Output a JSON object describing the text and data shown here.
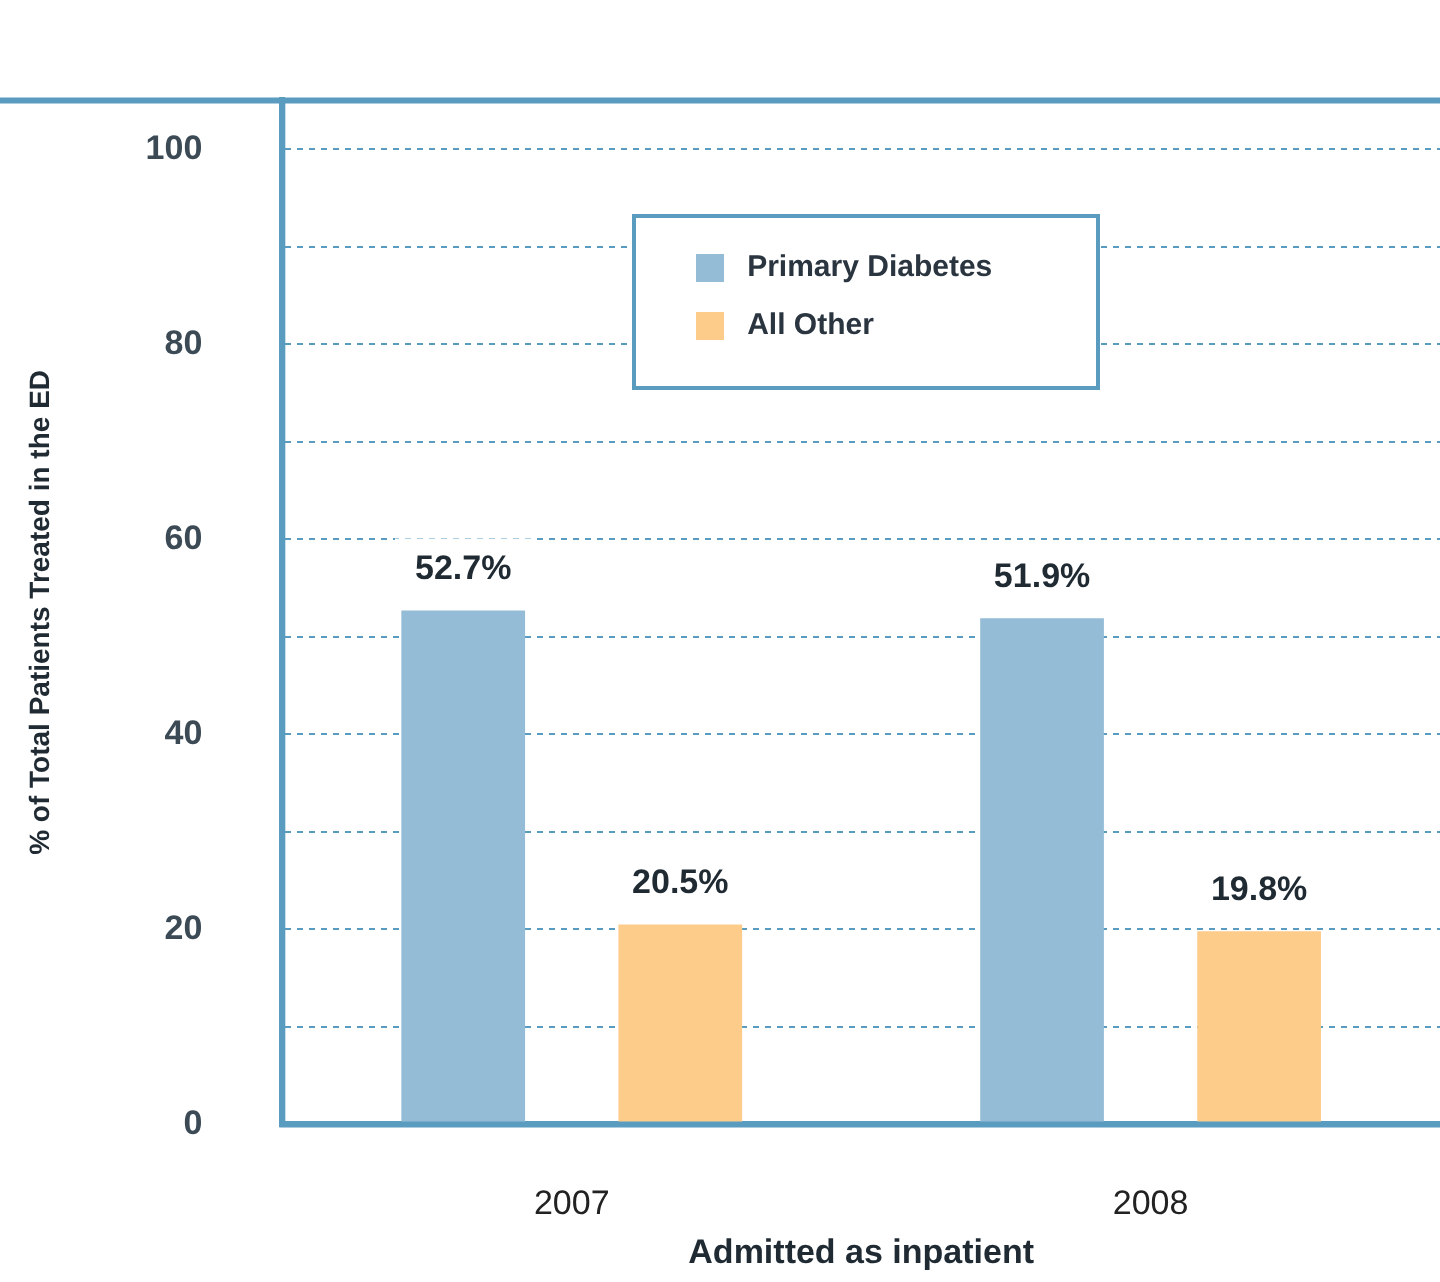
{
  "chart_data": {
    "type": "bar",
    "xlabel": "Admitted as inpatient",
    "ylabel": "% of Total Patients Treated in the ED",
    "categories": [
      "2007",
      "2008"
    ],
    "series": [
      {
        "name": "Primary Diabetes",
        "color": "#94bcd6",
        "values": [
          52.7,
          51.9
        ],
        "value_labels": [
          "52.7%",
          "51.9%"
        ]
      },
      {
        "name": "All Other",
        "color": "#fdcc8a",
        "values": [
          20.5,
          19.8
        ],
        "value_labels": [
          "20.5%",
          "19.8%"
        ]
      }
    ],
    "ylim": [
      0,
      105
    ],
    "yticks": [
      0,
      {
        "value": 10,
        "label": null
      },
      20,
      {
        "value": 30,
        "label": null
      },
      40,
      {
        "value": 50,
        "label": null
      },
      60,
      {
        "value": 70,
        "label": null
      },
      80,
      {
        "value": 90,
        "label": null
      },
      100
    ],
    "grid": "y",
    "legend": "top",
    "line_style": "dashed"
  }
}
